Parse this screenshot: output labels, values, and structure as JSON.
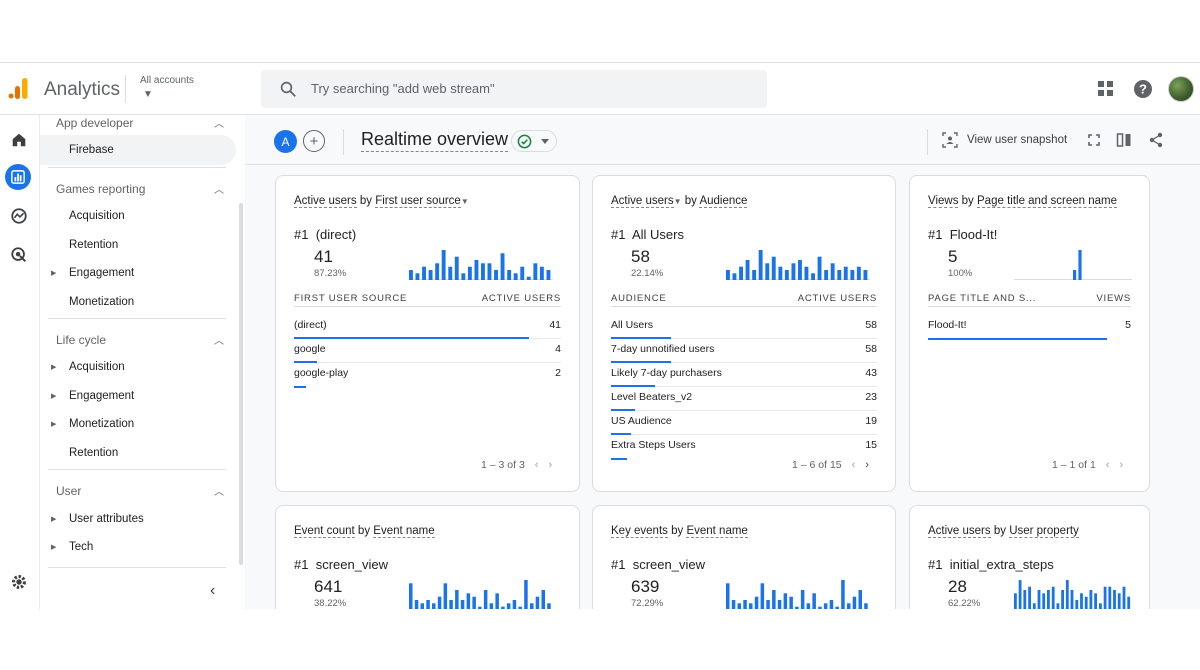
{
  "header": {
    "app_title": "Analytics",
    "account_label": "All accounts",
    "search_placeholder": "Try searching \"add web stream\""
  },
  "sidebar": {
    "sections": [
      {
        "label": "App developer",
        "items": [
          {
            "label": "Firebase",
            "expandable": false,
            "selected": true
          }
        ]
      },
      {
        "label": "Games reporting",
        "items": [
          {
            "label": "Acquisition",
            "expandable": false
          },
          {
            "label": "Retention",
            "expandable": false
          },
          {
            "label": "Engagement",
            "expandable": true
          },
          {
            "label": "Monetization",
            "expandable": false
          }
        ]
      },
      {
        "label": "Life cycle",
        "items": [
          {
            "label": "Acquisition",
            "expandable": true
          },
          {
            "label": "Engagement",
            "expandable": true
          },
          {
            "label": "Monetization",
            "expandable": true
          },
          {
            "label": "Retention",
            "expandable": false
          }
        ]
      },
      {
        "label": "User",
        "items": [
          {
            "label": "User attributes",
            "expandable": true
          },
          {
            "label": "Tech",
            "expandable": true
          }
        ]
      }
    ]
  },
  "toolbar": {
    "compare_letter": "A",
    "title": "Realtime overview",
    "snapshot_label": "View user snapshot"
  },
  "cards": [
    {
      "title_metric": "Active users",
      "title_dimension": "First user source",
      "top_rank": "#1",
      "top_name": "(direct)",
      "top_value": "41",
      "top_pct": "87.23%",
      "col_left": "FIRST USER SOURCE",
      "col_right": "ACTIVE USERS",
      "rows": [
        {
          "label": "(direct)",
          "value": "41",
          "share": 1.0
        },
        {
          "label": "google",
          "value": "4",
          "share": 0.1
        },
        {
          "label": "google-play",
          "value": "2",
          "share": 0.05
        }
      ],
      "pager": "1 – 3 of 3",
      "spark": [
        3,
        2,
        4,
        3,
        5,
        9,
        4,
        7,
        2,
        4,
        6,
        5,
        5,
        3,
        8,
        3,
        2,
        4,
        1,
        5,
        4,
        3
      ]
    },
    {
      "title_metric": "Active users",
      "title_dimension": "Audience",
      "top_rank": "#1",
      "top_name": "All Users",
      "top_value": "58",
      "top_pct": "22.14%",
      "col_left": "AUDIENCE",
      "col_right": "ACTIVE USERS",
      "rows": [
        {
          "label": "All Users",
          "value": "58",
          "share": 1.0
        },
        {
          "label": "7-day unnotified users",
          "value": "58",
          "share": 1.0
        },
        {
          "label": "Likely 7-day purchasers",
          "value": "43",
          "share": 0.74
        },
        {
          "label": "Level Beaters_v2",
          "value": "23",
          "share": 0.4
        },
        {
          "label": "US Audience",
          "value": "19",
          "share": 0.33
        },
        {
          "label": "Extra Steps Users",
          "value": "15",
          "share": 0.26
        }
      ],
      "pager": "1 – 6 of 15",
      "spark": [
        3,
        2,
        4,
        6,
        3,
        9,
        5,
        7,
        4,
        3,
        5,
        6,
        4,
        2,
        7,
        3,
        5,
        3,
        4,
        3,
        4,
        3
      ]
    },
    {
      "title_metric": "Views",
      "title_dimension": "Page title and screen name",
      "top_rank": "#1",
      "top_name": "Flood-It!",
      "top_value": "5",
      "top_pct": "100%",
      "col_left": "PAGE TITLE AND S...",
      "col_right": "VIEWS",
      "rows": [
        {
          "label": "Flood-It!",
          "value": "5",
          "share": 1.0
        }
      ],
      "pager": "1 – 1 of 1",
      "spark": [
        0,
        0,
        0,
        0,
        0,
        0,
        0,
        0,
        0,
        0,
        0,
        3,
        9,
        0,
        0,
        0,
        0,
        0,
        0,
        0,
        0,
        0
      ]
    },
    {
      "title_metric": "Event count",
      "title_dimension": "Event name",
      "top_rank": "#1",
      "top_name": "screen_view",
      "top_value": "641",
      "top_pct": "38.22%",
      "spark": [
        8,
        3,
        2,
        3,
        2,
        4,
        8,
        3,
        6,
        3,
        5,
        4,
        1,
        6,
        2,
        5,
        1,
        2,
        3,
        1,
        9,
        2,
        4,
        6,
        2
      ]
    },
    {
      "title_metric": "Key events",
      "title_dimension": "Event name",
      "top_rank": "#1",
      "top_name": "screen_view",
      "top_value": "639",
      "top_pct": "72.29%",
      "spark": [
        8,
        3,
        2,
        3,
        2,
        4,
        8,
        3,
        6,
        3,
        5,
        4,
        1,
        6,
        2,
        5,
        1,
        2,
        3,
        1,
        9,
        2,
        4,
        6,
        2
      ]
    },
    {
      "title_metric": "Active users",
      "title_dimension": "User property",
      "top_rank": "#1",
      "top_name": "initial_extra_steps",
      "top_value": "28",
      "top_pct": "62.22%",
      "spark": [
        5,
        9,
        6,
        7,
        2,
        6,
        5,
        6,
        7,
        2,
        6,
        9,
        6,
        3,
        5,
        4,
        6,
        5,
        2,
        7,
        7,
        6,
        5,
        7,
        4
      ]
    }
  ],
  "colors": {
    "accent": "#1a73e8",
    "logo_orange": "#f9ab00",
    "logo_dark_orange": "#e37400",
    "status_green": "#188038"
  }
}
